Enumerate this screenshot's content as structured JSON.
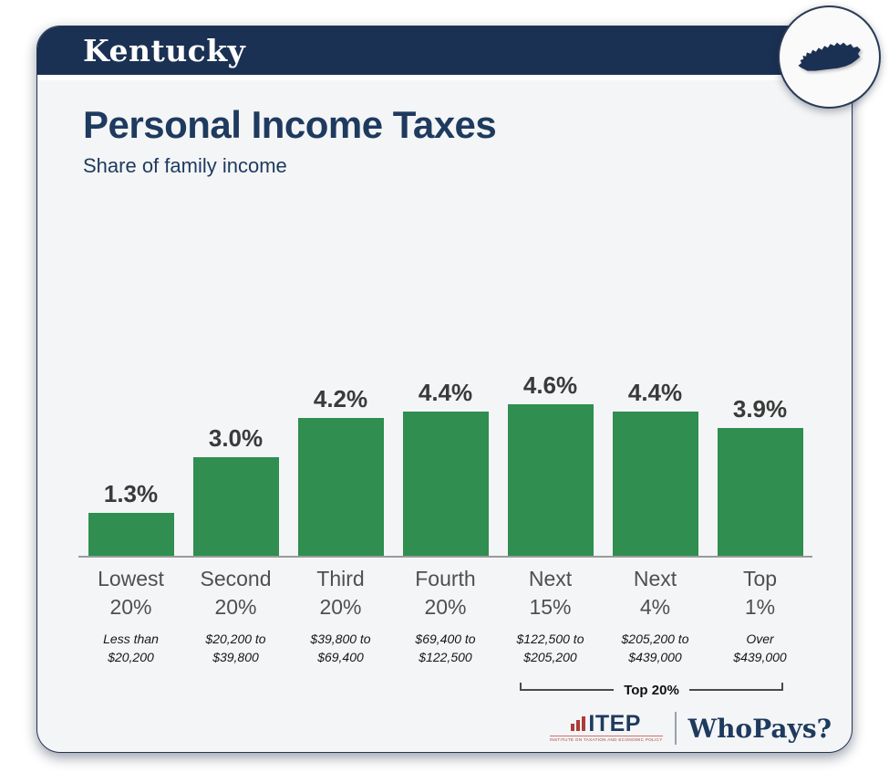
{
  "header": {
    "state": "Kentucky"
  },
  "main": {
    "title": "Personal Income Taxes",
    "subtitle": "Share of family income",
    "bracket_label": "Top 20%"
  },
  "chart_data": {
    "type": "bar",
    "title": "Personal Income Taxes",
    "subtitle": "Share of family income",
    "categories": [
      "Lowest 20%",
      "Second 20%",
      "Third 20%",
      "Fourth 20%",
      "Next 15%",
      "Next 4%",
      "Top 1%"
    ],
    "values": [
      1.3,
      3.0,
      4.2,
      4.4,
      4.6,
      4.4,
      3.9
    ],
    "value_labels": [
      "1.3%",
      "3.0%",
      "4.2%",
      "4.4%",
      "4.6%",
      "4.4%",
      "3.9%"
    ],
    "income_ranges": [
      "Less than $20,200",
      "$20,200 to $39,800",
      "$39,800 to $69,400",
      "$69,400 to $122,500",
      "$122,500 to $205,200",
      "$205,200 to $439,000",
      "Over $439,000"
    ],
    "annotation": "Top 20% bracket spans Next 15%, Next 4% and Top 1%",
    "xlabel": "",
    "ylabel": "",
    "ylim": [
      0,
      5
    ],
    "grid": false,
    "legend": false,
    "bar_color": "#2f8e50"
  },
  "footer": {
    "itep": "ITEP",
    "itep_caption": "INSTITUTE ON TAXATION AND ECONOMIC POLICY",
    "whopays": "WhoPays?"
  },
  "colors": {
    "header_navy": "#1b3153",
    "title_navy": "#1e3a5f",
    "bar_green": "#2f8e50",
    "accent_red": "#ad3c39",
    "value_label_gray": "#3a3a3a",
    "category_gray": "#4f4f4f"
  }
}
